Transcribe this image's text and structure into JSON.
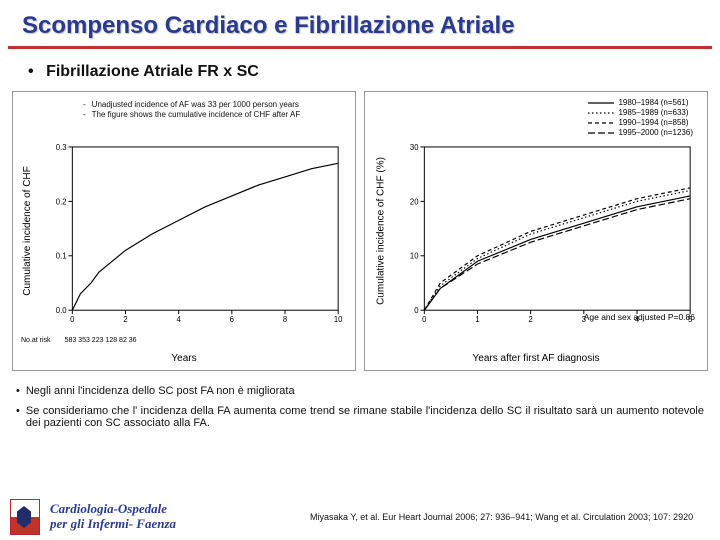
{
  "title": "Scompenso Cardiaco e Fibrillazione Atriale",
  "subtitle": "Fibrillazione Atriale FR x SC",
  "chart1": {
    "type": "line",
    "note1": "Unadjusted incidence of AF was 33 per 1000 person years",
    "note2": "The figure shows the cumulative incidence of CHF after AF",
    "y_label": "Cumulative incidence of CHF",
    "x_label": "Years",
    "xlim": [
      0,
      10
    ],
    "xticks": [
      0,
      2,
      4,
      6,
      8,
      10
    ],
    "ylim": [
      0,
      0.3
    ],
    "yticks": [
      "0.0",
      "0.1",
      "0.2",
      "0.3"
    ],
    "data": [
      [
        0,
        0
      ],
      [
        0.3,
        0.03
      ],
      [
        0.7,
        0.05
      ],
      [
        1,
        0.07
      ],
      [
        2,
        0.11
      ],
      [
        3,
        0.14
      ],
      [
        4,
        0.165
      ],
      [
        5,
        0.19
      ],
      [
        6,
        0.21
      ],
      [
        7,
        0.23
      ],
      [
        8,
        0.245
      ],
      [
        9,
        0.26
      ],
      [
        10,
        0.27
      ]
    ],
    "no_at_risk_label": "No.at risk",
    "no_at_risk": [
      "583",
      "353",
      "223",
      "128",
      "82",
      "36"
    ],
    "line_color": "#000000",
    "background_color": "#ffffff"
  },
  "chart2": {
    "type": "line",
    "y_label": "Cumulative incidence of CHF (%)",
    "x_label": "Years after first AF diagnosis",
    "xlim": [
      0,
      5
    ],
    "xticks": [
      0,
      1,
      2,
      3,
      4,
      5
    ],
    "ylim": [
      0,
      30
    ],
    "yticks": [
      0,
      10,
      20,
      30
    ],
    "legend": [
      {
        "style": "solid",
        "label": "1980–1984 (n=561)"
      },
      {
        "style": "dotted",
        "label": "1985–1989 (n=633)"
      },
      {
        "style": "dashed",
        "label": "1990–1994 (n=858)"
      },
      {
        "style": "long-dash",
        "label": "1995–2000 (n=1236)"
      }
    ],
    "series": [
      {
        "style": "solid",
        "data": [
          [
            0,
            0
          ],
          [
            0.3,
            4
          ],
          [
            1,
            9
          ],
          [
            2,
            13
          ],
          [
            3,
            16
          ],
          [
            4,
            19
          ],
          [
            5,
            21
          ]
        ]
      },
      {
        "style": "dotted",
        "data": [
          [
            0,
            0
          ],
          [
            0.3,
            4.5
          ],
          [
            1,
            9.5
          ],
          [
            2,
            14
          ],
          [
            3,
            17
          ],
          [
            4,
            20
          ],
          [
            5,
            22
          ]
        ]
      },
      {
        "style": "dashed",
        "data": [
          [
            0,
            0
          ],
          [
            0.3,
            5
          ],
          [
            1,
            10
          ],
          [
            2,
            14.5
          ],
          [
            3,
            17.5
          ],
          [
            4,
            20.5
          ],
          [
            5,
            22.5
          ]
        ]
      },
      {
        "style": "long-dash",
        "data": [
          [
            0,
            0
          ],
          [
            0.3,
            4
          ],
          [
            1,
            8.5
          ],
          [
            2,
            12.5
          ],
          [
            3,
            15.5
          ],
          [
            4,
            18.5
          ],
          [
            5,
            20.5
          ]
        ]
      }
    ],
    "p_text": "Age and sex adjusted P=0.86",
    "line_color": "#000000",
    "background_color": "#ffffff"
  },
  "bullets": [
    "Negli anni l'incidenza dello SC post FA non è migliorata",
    "Se consideriamo che l' incidenza della FA aumenta come trend se rimane stabile l'incidenza dello SC il risultato sarà un aumento notevole dei pazienti con SC associato alla FA."
  ],
  "footer": {
    "dept_line1": "Cardiologia-Ospedale",
    "dept_line2": "per gli Infermi- Faenza",
    "citation": "Miyasaka Y, et al. Eur Heart Journal 2006; 27: 936–941; Wang et al. Circulation 2003; 107: 2920"
  },
  "colors": {
    "title": "#2a3b8f",
    "rule": "#c0332b",
    "text": "#111111",
    "axis": "#000000"
  }
}
